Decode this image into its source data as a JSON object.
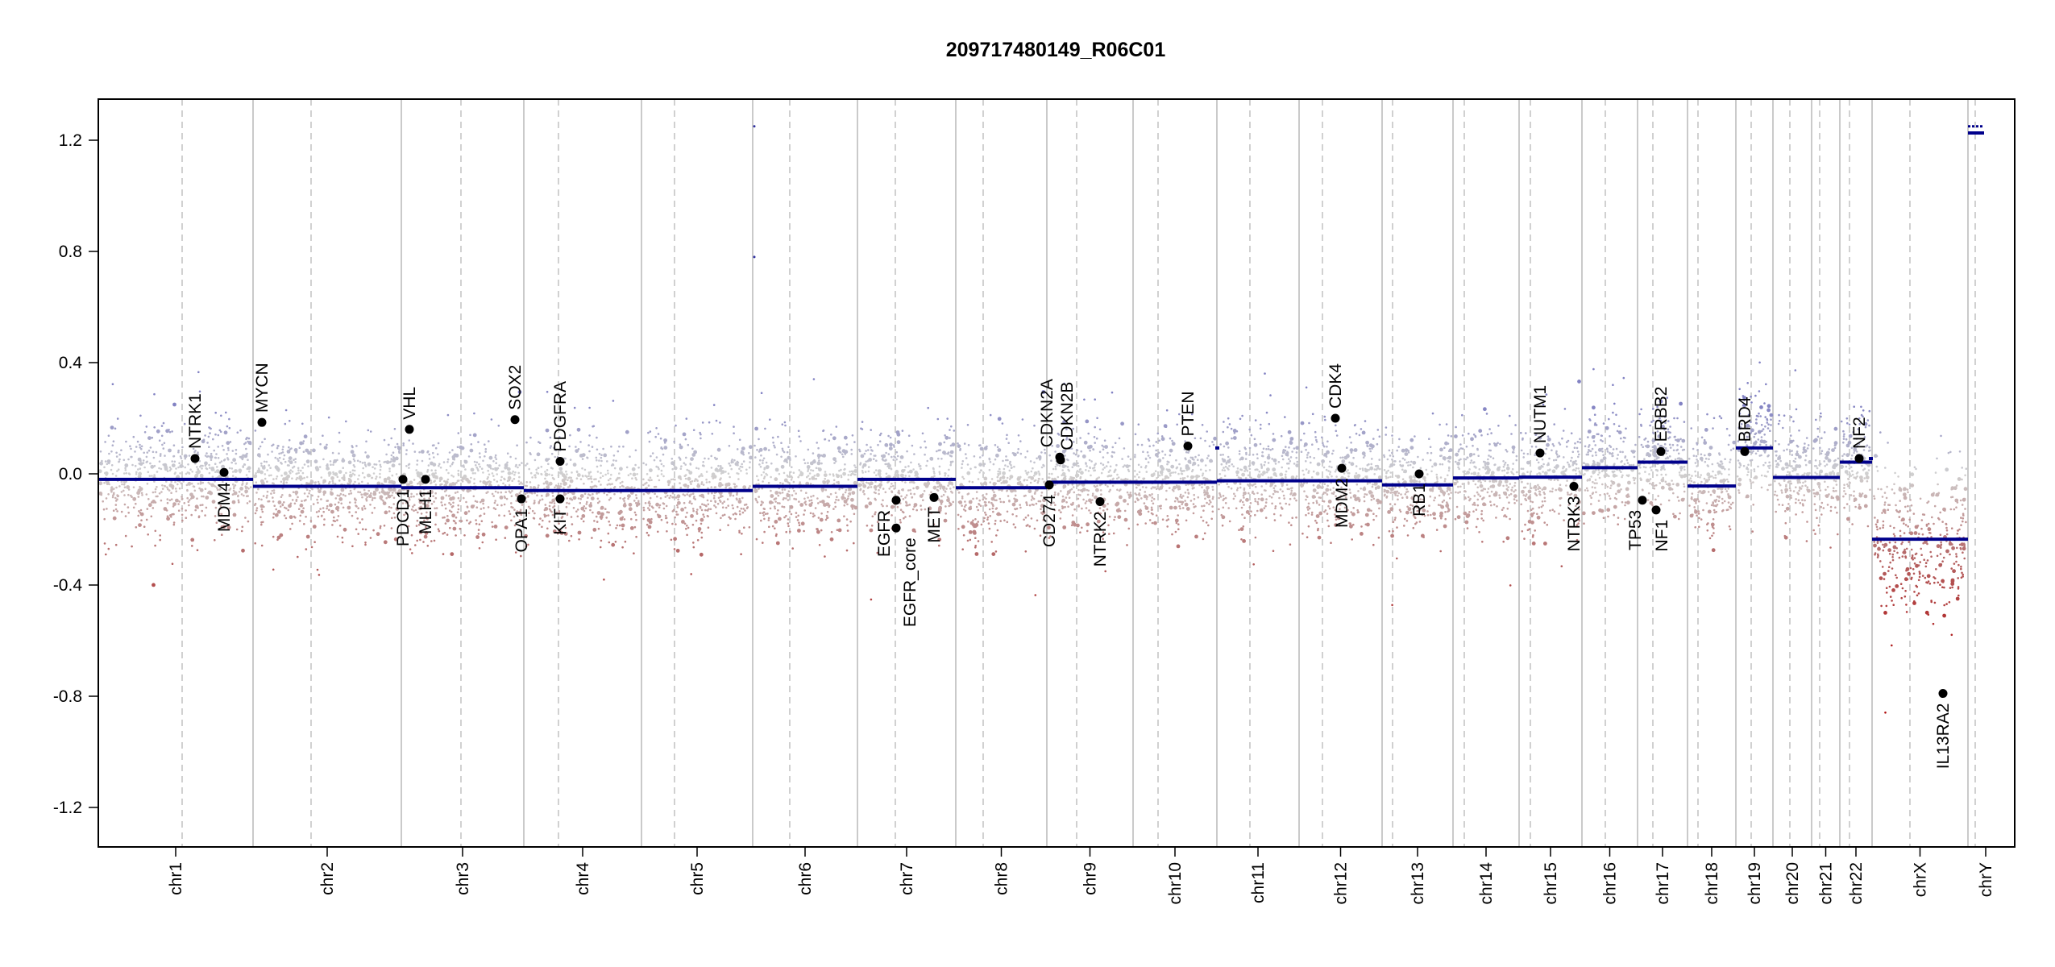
{
  "chart_data": {
    "type": "scatter",
    "title": "209717480149_R06C01",
    "xlabel": "",
    "ylabel": "",
    "ylim": [
      -1.35,
      1.35
    ],
    "yticks": [
      "-1.2",
      "-0.8",
      "-0.4",
      "0.0",
      "0.4",
      "0.8",
      "1.2"
    ],
    "ytick_values": [
      -1.2,
      -0.8,
      -0.4,
      0.0,
      0.4,
      0.8,
      1.2
    ],
    "chromosomes": [
      "chr1",
      "chr2",
      "chr3",
      "chr4",
      "chr5",
      "chr6",
      "chr7",
      "chr8",
      "chr9",
      "chr10",
      "chr11",
      "chr12",
      "chr13",
      "chr14",
      "chr15",
      "chr16",
      "chr17",
      "chr18",
      "chr19",
      "chr20",
      "chr21",
      "chr22",
      "chrX",
      "chrY"
    ],
    "segments": [
      {
        "chr": "chr1",
        "value": -0.02
      },
      {
        "chr": "chr2",
        "value": -0.045
      },
      {
        "chr": "chr3",
        "value": -0.05
      },
      {
        "chr": "chr4",
        "value": -0.06
      },
      {
        "chr": "chr5",
        "value": -0.06
      },
      {
        "chr": "chr6",
        "value": -0.045
      },
      {
        "chr": "chr7",
        "value": -0.02
      },
      {
        "chr": "chr8",
        "value": -0.05
      },
      {
        "chr": "chr9",
        "value": -0.03
      },
      {
        "chr": "chr10",
        "value": -0.03
      },
      {
        "chr": "chr11",
        "value": -0.025
      },
      {
        "chr": "chr12",
        "value": -0.025
      },
      {
        "chr": "chr13",
        "value": -0.04
      },
      {
        "chr": "chr14",
        "value": -0.015
      },
      {
        "chr": "chr15",
        "value": -0.012
      },
      {
        "chr": "chr16",
        "value": 0.022
      },
      {
        "chr": "chr17",
        "value": 0.042
      },
      {
        "chr": "chr18",
        "value": -0.044
      },
      {
        "chr": "chr19",
        "value": 0.093
      },
      {
        "chr": "chr20",
        "value": -0.013
      },
      {
        "chr": "chr21",
        "value": -0.013
      },
      {
        "chr": "chr22",
        "value": 0.042
      },
      {
        "chr": "chrX",
        "value": -0.235
      },
      {
        "chr": "chrY",
        "value": 1.226
      }
    ],
    "extra_segments": [
      {
        "chr": "chr10",
        "value": 0.093
      },
      {
        "chr": "chr22",
        "value": 0.055
      },
      {
        "chr": "chrY",
        "value": 1.25
      }
    ],
    "genes": [
      {
        "name": "NTRK1",
        "chr": "chr1",
        "value": 0.055
      },
      {
        "name": "MDM4",
        "chr": "chr1",
        "value": 0.005
      },
      {
        "name": "MYCN",
        "chr": "chr2",
        "value": 0.185
      },
      {
        "name": "PDCD1",
        "chr": "chr2",
        "value": -0.02
      },
      {
        "name": "VHL",
        "chr": "chr3",
        "value": 0.16
      },
      {
        "name": "MLH1",
        "chr": "chr3",
        "value": -0.02
      },
      {
        "name": "SOX2",
        "chr": "chr3",
        "value": 0.195
      },
      {
        "name": "OPA1",
        "chr": "chr3",
        "value": -0.09
      },
      {
        "name": "PDGFRA",
        "chr": "chr4",
        "value": 0.045
      },
      {
        "name": "KIT",
        "chr": "chr4",
        "value": -0.09
      },
      {
        "name": "EGFR",
        "chr": "chr7",
        "value": -0.095
      },
      {
        "name": "EGFR_core",
        "chr": "chr7",
        "value": -0.195
      },
      {
        "name": "MET",
        "chr": "chr7",
        "value": -0.085
      },
      {
        "name": "CD274",
        "chr": "chr9",
        "value": -0.04
      },
      {
        "name": "CDKN2A",
        "chr": "chr9",
        "value": 0.06
      },
      {
        "name": "CDKN2B",
        "chr": "chr9",
        "value": 0.05
      },
      {
        "name": "NTRK2",
        "chr": "chr9",
        "value": -0.1
      },
      {
        "name": "PTEN",
        "chr": "chr10",
        "value": 0.1
      },
      {
        "name": "MDM2",
        "chr": "chr12",
        "value": 0.02
      },
      {
        "name": "CDK4",
        "chr": "chr12",
        "value": 0.2
      },
      {
        "name": "RB1",
        "chr": "chr13",
        "value": 0.0
      },
      {
        "name": "NUTM1",
        "chr": "chr15",
        "value": 0.075
      },
      {
        "name": "NTRK3",
        "chr": "chr15",
        "value": -0.045
      },
      {
        "name": "TP53",
        "chr": "chr17",
        "value": -0.095
      },
      {
        "name": "NF1",
        "chr": "chr17",
        "value": -0.13
      },
      {
        "name": "ERBB2",
        "chr": "chr17",
        "value": 0.08
      },
      {
        "name": "BRD4",
        "chr": "chr19",
        "value": 0.08
      },
      {
        "name": "NF2",
        "chr": "chr22",
        "value": 0.055
      },
      {
        "name": "IL13RA2",
        "chr": "chrX",
        "value": -0.79
      }
    ],
    "colors": {
      "segment": "#00008b",
      "gain": "#8c8cc4",
      "neutral": "#cfcfcf",
      "loss": "#a82020",
      "gene_dot": "#000000"
    },
    "grid": false,
    "legend": "none"
  }
}
